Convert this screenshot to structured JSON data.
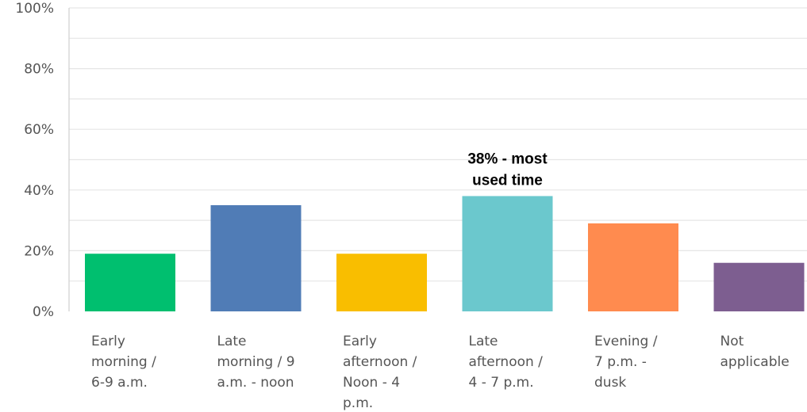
{
  "chart_data": {
    "type": "bar",
    "categories": [
      [
        "Early",
        "morning /",
        "6-9 a.m."
      ],
      [
        "Late",
        "morning / 9",
        "a.m. - noon"
      ],
      [
        "Early",
        "afternoon /",
        "Noon - 4",
        "p.m."
      ],
      [
        "Late",
        "afternoon /",
        "4 - 7 p.m."
      ],
      [
        "Evening /",
        "7 p.m. -",
        "dusk"
      ],
      [
        "Not",
        "applicable"
      ]
    ],
    "values": [
      19,
      35,
      19,
      38,
      29,
      16
    ],
    "colors": [
      "#00bf6f",
      "#507cb6",
      "#f9be00",
      "#6bc8cd",
      "#ff8b4f",
      "#7d5e90"
    ],
    "ylim": [
      0,
      100
    ],
    "yticks": [
      "0%",
      "20%",
      "40%",
      "60%",
      "80%",
      "100%"
    ],
    "grid": true,
    "annotation": {
      "lines": [
        "38% - most",
        "used time"
      ],
      "category_index": 3
    }
  }
}
